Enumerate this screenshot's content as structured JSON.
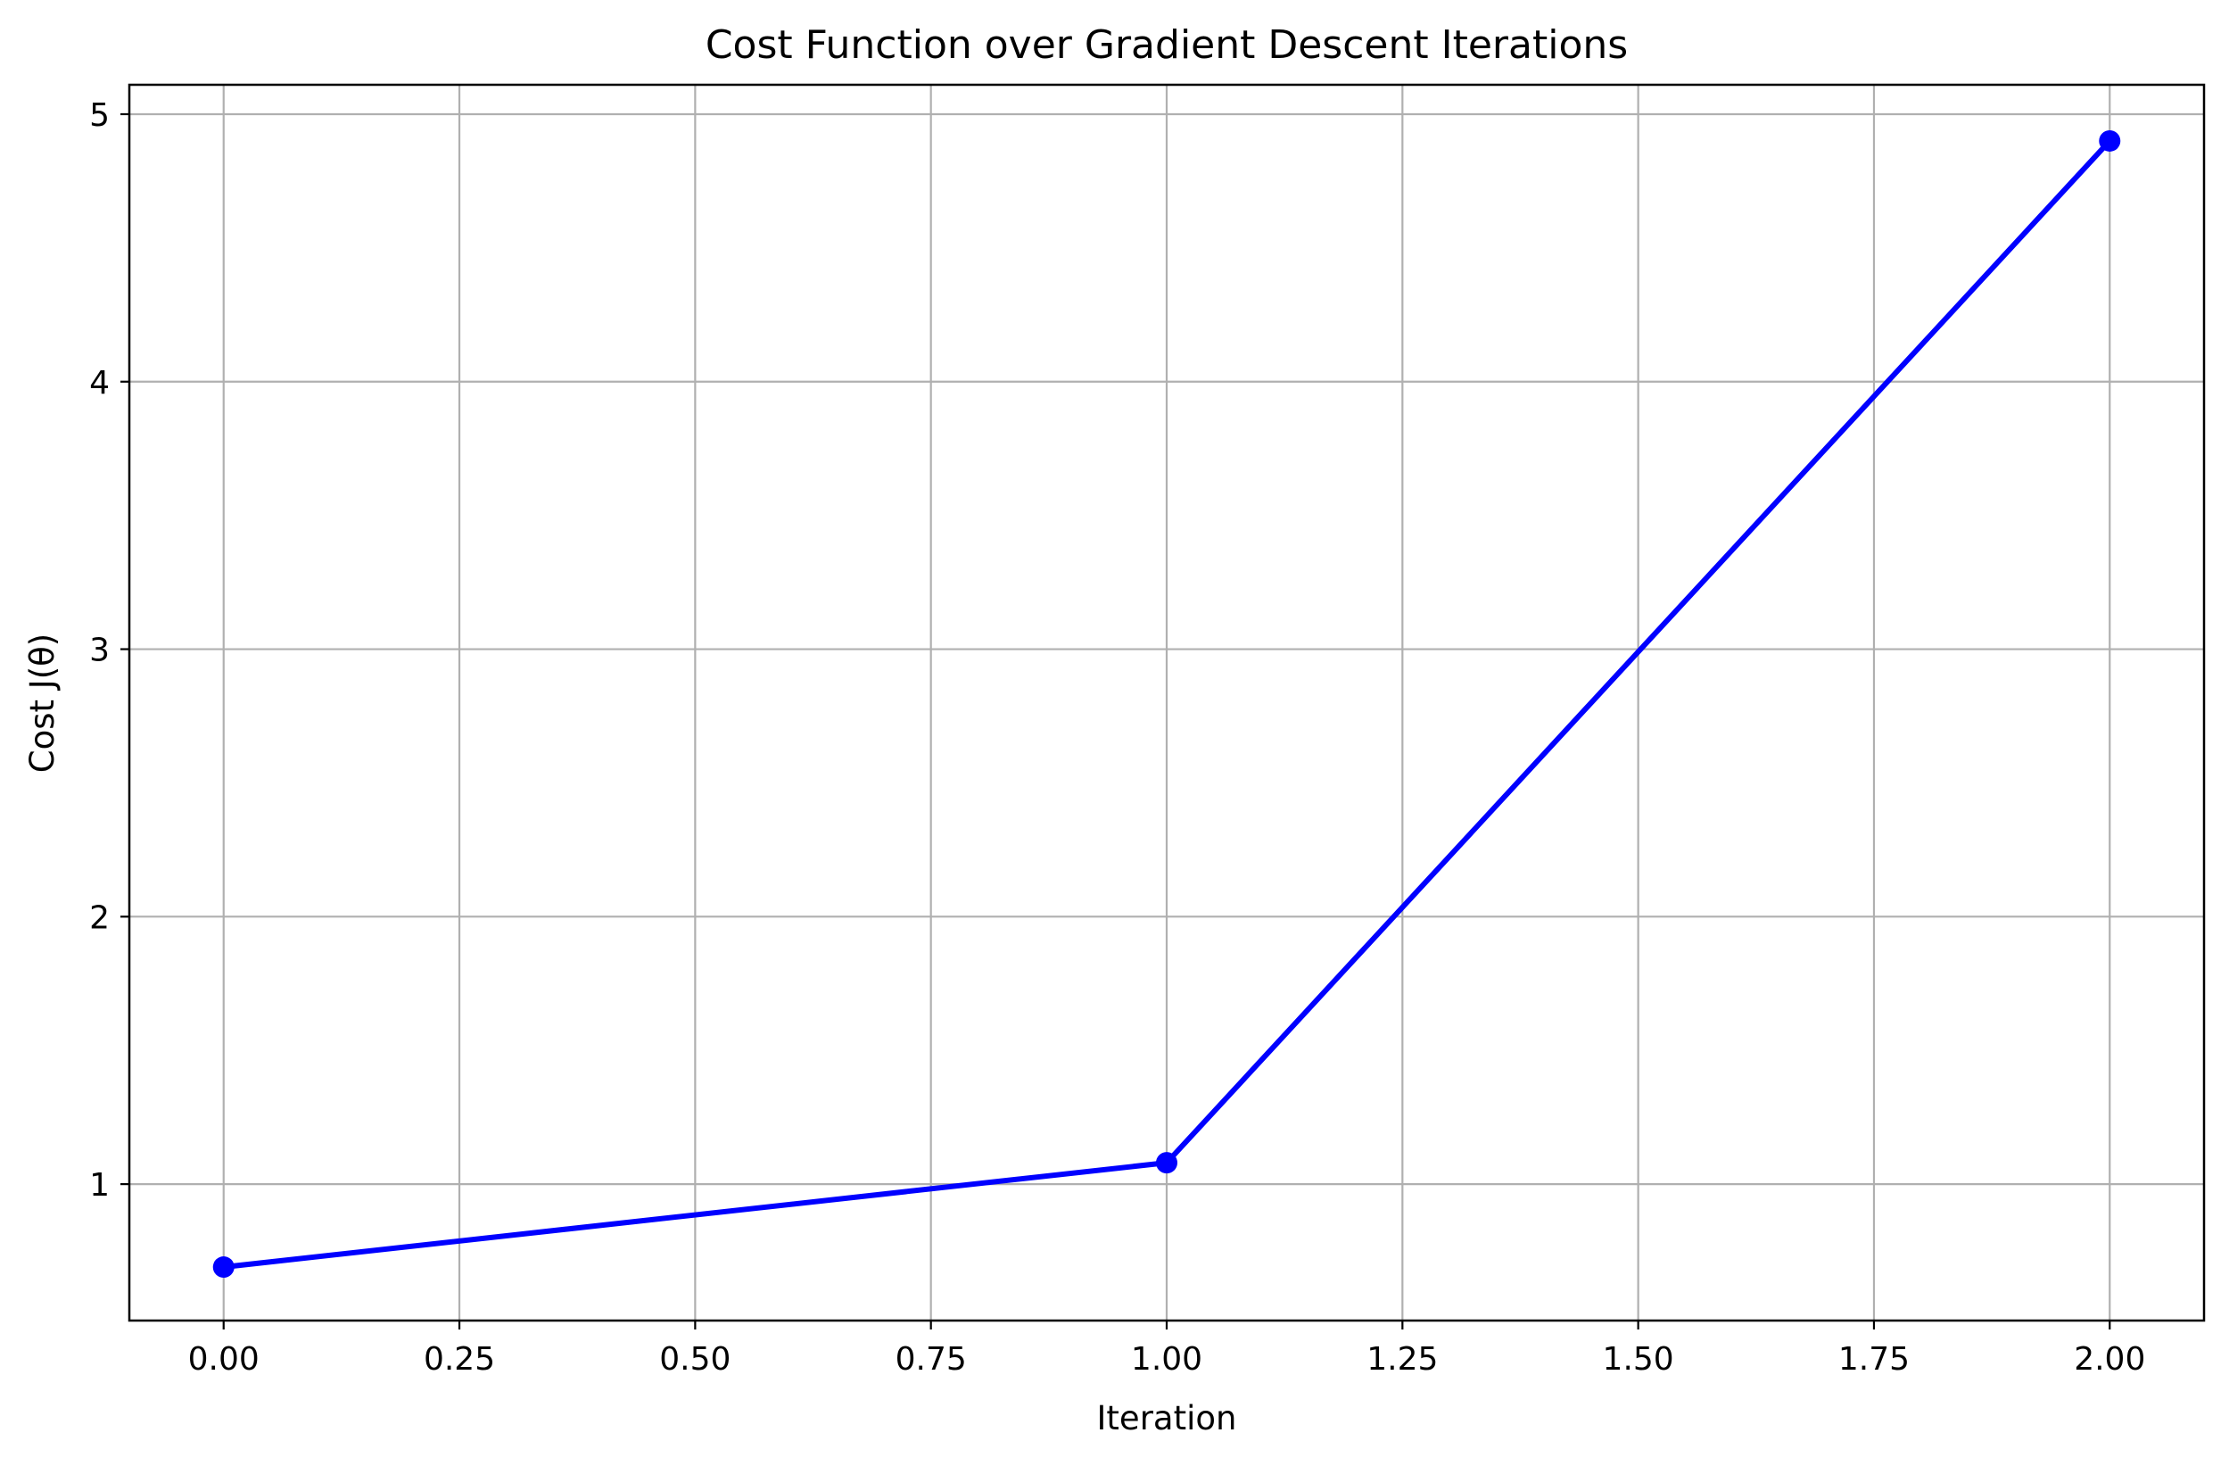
{
  "chart_data": {
    "type": "line",
    "title": "Cost Function over Gradient Descent Iterations",
    "xlabel": "Iteration",
    "ylabel": "Cost J(θ)",
    "x": [
      0,
      1,
      2
    ],
    "series": [
      {
        "values": [
          0.69,
          1.08,
          4.9
        ]
      }
    ],
    "xlim": [
      -0.1,
      2.1
    ],
    "ylim": [
      0.49,
      5.11
    ],
    "xticks": [
      0.0,
      0.25,
      0.5,
      0.75,
      1.0,
      1.25,
      1.5,
      1.75,
      2.0
    ],
    "xtick_labels": [
      "0.00",
      "0.25",
      "0.50",
      "0.75",
      "1.00",
      "1.25",
      "1.50",
      "1.75",
      "2.00"
    ],
    "yticks": [
      1,
      2,
      3,
      4,
      5
    ],
    "ytick_labels": [
      "1",
      "2",
      "3",
      "4",
      "5"
    ],
    "grid": true,
    "legend": "none",
    "line_color": "#0000ff",
    "marker": "circle",
    "grid_color": "#b0b0b0"
  }
}
